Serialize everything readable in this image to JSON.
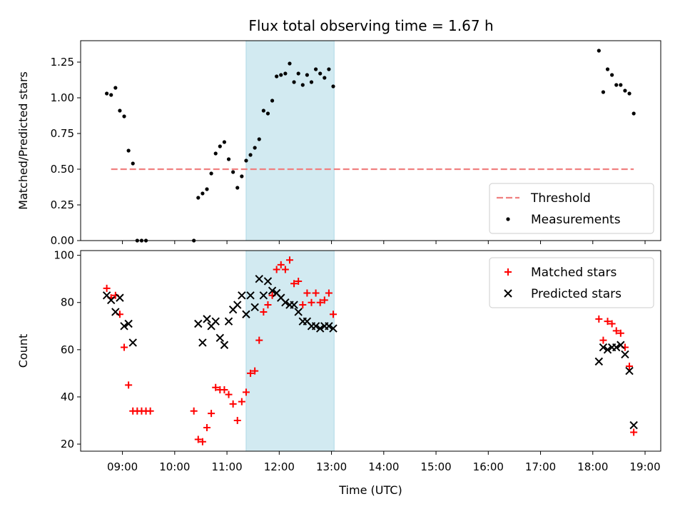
{
  "title": "Flux total observing time = 1.67 h",
  "chart_data": [
    {
      "type": "scatter",
      "ylabel": "Matched/Predicted stars",
      "ylim": [
        0,
        1.4
      ],
      "yticks": [
        "0.00",
        "0.25",
        "0.50",
        "0.75",
        "1.00",
        "1.25"
      ],
      "xlim": [
        8.2,
        19.3
      ],
      "legend_position": "lower-right",
      "shaded_interval": [
        "11:22",
        "13:03"
      ],
      "shade_color": "#add8e6",
      "threshold": {
        "name": "Threshold",
        "value": 0.5,
        "x": [
          "08:47",
          "18:47"
        ],
        "color": "#f08080"
      },
      "series": [
        {
          "name": "Measurements",
          "marker": "dot",
          "color": "#000000",
          "points": [
            [
              "08:42",
              1.03
            ],
            [
              "08:47",
              1.02
            ],
            [
              "08:52",
              1.07
            ],
            [
              "08:57",
              0.91
            ],
            [
              "09:02",
              0.87
            ],
            [
              "09:07",
              0.63
            ],
            [
              "09:12",
              0.54
            ],
            [
              "09:17",
              0.0
            ],
            [
              "09:22",
              0.0
            ],
            [
              "09:27",
              0.0
            ],
            [
              "10:22",
              0.0
            ],
            [
              "10:27",
              0.3
            ],
            [
              "10:32",
              0.33
            ],
            [
              "10:37",
              0.36
            ],
            [
              "10:42",
              0.47
            ],
            [
              "10:47",
              0.61
            ],
            [
              "10:52",
              0.66
            ],
            [
              "10:57",
              0.69
            ],
            [
              "11:02",
              0.57
            ],
            [
              "11:07",
              0.48
            ],
            [
              "11:12",
              0.37
            ],
            [
              "11:17",
              0.45
            ],
            [
              "11:22",
              0.56
            ],
            [
              "11:27",
              0.6
            ],
            [
              "11:32",
              0.65
            ],
            [
              "11:37",
              0.71
            ],
            [
              "11:42",
              0.91
            ],
            [
              "11:47",
              0.89
            ],
            [
              "11:52",
              0.98
            ],
            [
              "11:57",
              1.15
            ],
            [
              "12:02",
              1.16
            ],
            [
              "12:07",
              1.17
            ],
            [
              "12:12",
              1.24
            ],
            [
              "12:17",
              1.11
            ],
            [
              "12:22",
              1.17
            ],
            [
              "12:27",
              1.09
            ],
            [
              "12:32",
              1.16
            ],
            [
              "12:37",
              1.11
            ],
            [
              "12:42",
              1.2
            ],
            [
              "12:47",
              1.17
            ],
            [
              "12:52",
              1.14
            ],
            [
              "12:57",
              1.2
            ],
            [
              "13:02",
              1.08
            ],
            [
              "18:07",
              1.33
            ],
            [
              "18:12",
              1.04
            ],
            [
              "18:17",
              1.2
            ],
            [
              "18:22",
              1.16
            ],
            [
              "18:27",
              1.09
            ],
            [
              "18:32",
              1.09
            ],
            [
              "18:37",
              1.05
            ],
            [
              "18:42",
              1.03
            ],
            [
              "18:47",
              0.89
            ]
          ]
        }
      ]
    },
    {
      "type": "scatter",
      "xlabel": "Time (UTC)",
      "ylabel": "Count",
      "ylim": [
        17,
        102
      ],
      "yticks": [
        "20",
        "40",
        "60",
        "80",
        "100"
      ],
      "xlim": [
        8.2,
        19.3
      ],
      "xticks": [
        "09:00",
        "10:00",
        "11:00",
        "12:00",
        "13:00",
        "14:00",
        "15:00",
        "16:00",
        "17:00",
        "18:00",
        "19:00"
      ],
      "legend_position": "upper-right",
      "shaded_interval": [
        "11:22",
        "13:03"
      ],
      "shade_color": "#add8e6",
      "series": [
        {
          "name": "Matched stars",
          "marker": "plus",
          "color": "#ff0000",
          "points": [
            [
              "08:42",
              86
            ],
            [
              "08:47",
              82
            ],
            [
              "08:52",
              83
            ],
            [
              "08:57",
              75
            ],
            [
              "09:02",
              61
            ],
            [
              "09:07",
              45
            ],
            [
              "09:12",
              34
            ],
            [
              "09:17",
              34
            ],
            [
              "09:22",
              34
            ],
            [
              "09:27",
              34
            ],
            [
              "09:32",
              34
            ],
            [
              "10:22",
              34
            ],
            [
              "10:27",
              22
            ],
            [
              "10:32",
              21
            ],
            [
              "10:37",
              27
            ],
            [
              "10:42",
              33
            ],
            [
              "10:47",
              44
            ],
            [
              "10:52",
              43
            ],
            [
              "10:57",
              43
            ],
            [
              "11:02",
              41
            ],
            [
              "11:07",
              37
            ],
            [
              "11:12",
              30
            ],
            [
              "11:17",
              38
            ],
            [
              "11:22",
              42
            ],
            [
              "11:27",
              50
            ],
            [
              "11:32",
              51
            ],
            [
              "11:37",
              64
            ],
            [
              "11:42",
              76
            ],
            [
              "11:47",
              79
            ],
            [
              "11:52",
              83
            ],
            [
              "11:57",
              94
            ],
            [
              "12:02",
              96
            ],
            [
              "12:07",
              94
            ],
            [
              "12:12",
              98
            ],
            [
              "12:17",
              88
            ],
            [
              "12:22",
              89
            ],
            [
              "12:27",
              79
            ],
            [
              "12:32",
              84
            ],
            [
              "12:37",
              80
            ],
            [
              "12:42",
              84
            ],
            [
              "12:47",
              80
            ],
            [
              "12:52",
              81
            ],
            [
              "12:57",
              84
            ],
            [
              "13:02",
              75
            ],
            [
              "18:07",
              73
            ],
            [
              "18:12",
              64
            ],
            [
              "18:17",
              72
            ],
            [
              "18:22",
              71
            ],
            [
              "18:27",
              68
            ],
            [
              "18:32",
              67
            ],
            [
              "18:37",
              61
            ],
            [
              "18:42",
              53
            ],
            [
              "18:47",
              25
            ]
          ]
        },
        {
          "name": "Predicted stars",
          "marker": "x",
          "color": "#000000",
          "points": [
            [
              "08:42",
              83
            ],
            [
              "08:47",
              81
            ],
            [
              "08:52",
              76
            ],
            [
              "08:57",
              82
            ],
            [
              "09:02",
              70
            ],
            [
              "09:07",
              71
            ],
            [
              "09:12",
              63
            ],
            [
              "10:27",
              71
            ],
            [
              "10:32",
              63
            ],
            [
              "10:37",
              73
            ],
            [
              "10:42",
              70
            ],
            [
              "10:47",
              72
            ],
            [
              "10:52",
              65
            ],
            [
              "10:57",
              62
            ],
            [
              "11:02",
              72
            ],
            [
              "11:07",
              77
            ],
            [
              "11:12",
              79
            ],
            [
              "11:17",
              83
            ],
            [
              "11:22",
              75
            ],
            [
              "11:27",
              83
            ],
            [
              "11:32",
              78
            ],
            [
              "11:37",
              90
            ],
            [
              "11:42",
              83
            ],
            [
              "11:47",
              89
            ],
            [
              "11:52",
              85
            ],
            [
              "11:57",
              84
            ],
            [
              "12:02",
              82
            ],
            [
              "12:07",
              80
            ],
            [
              "12:12",
              79
            ],
            [
              "12:17",
              79
            ],
            [
              "12:22",
              76
            ],
            [
              "12:27",
              72
            ],
            [
              "12:32",
              72
            ],
            [
              "12:37",
              70
            ],
            [
              "12:42",
              70
            ],
            [
              "12:47",
              69
            ],
            [
              "12:52",
              70
            ],
            [
              "12:57",
              70
            ],
            [
              "13:02",
              69
            ],
            [
              "18:07",
              55
            ],
            [
              "18:12",
              61
            ],
            [
              "18:17",
              60
            ],
            [
              "18:22",
              61
            ],
            [
              "18:27",
              61
            ],
            [
              "18:32",
              62
            ],
            [
              "18:37",
              58
            ],
            [
              "18:42",
              51
            ],
            [
              "18:47",
              28
            ]
          ]
        }
      ]
    }
  ]
}
